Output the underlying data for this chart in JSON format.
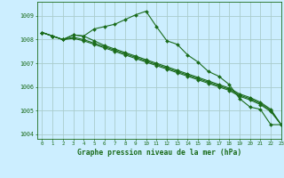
{
  "title": "Graphe pression niveau de la mer (hPa)",
  "background_color": "#cceeff",
  "grid_color": "#aacccc",
  "line_color": "#1a6b1a",
  "xlim": [
    -0.5,
    23
  ],
  "ylim": [
    1003.8,
    1009.6
  ],
  "yticks": [
    1004,
    1005,
    1006,
    1007,
    1008,
    1009
  ],
  "xticks": [
    0,
    1,
    2,
    3,
    4,
    5,
    6,
    7,
    8,
    9,
    10,
    11,
    12,
    13,
    14,
    15,
    16,
    17,
    18,
    19,
    20,
    21,
    22,
    23
  ],
  "series": [
    [
      1008.3,
      1008.15,
      1008.0,
      1008.2,
      1008.15,
      1008.45,
      1008.55,
      1008.65,
      1008.85,
      1009.05,
      1009.2,
      1008.55,
      1007.95,
      1007.8,
      1007.35,
      1007.05,
      1006.65,
      1006.45,
      1006.1,
      1005.5,
      1005.15,
      1005.05,
      1004.4,
      1004.4
    ],
    [
      1008.3,
      1008.15,
      1008.0,
      1008.2,
      1008.15,
      1007.95,
      1007.75,
      1007.6,
      1007.45,
      1007.3,
      1007.15,
      1007.0,
      1006.85,
      1006.7,
      1006.55,
      1006.4,
      1006.25,
      1006.1,
      1005.95,
      1005.7,
      1005.55,
      1005.35,
      1005.05,
      1004.4
    ],
    [
      1008.3,
      1008.15,
      1008.0,
      1008.1,
      1008.0,
      1007.85,
      1007.7,
      1007.55,
      1007.4,
      1007.25,
      1007.1,
      1006.95,
      1006.8,
      1006.65,
      1006.5,
      1006.35,
      1006.2,
      1006.05,
      1005.9,
      1005.65,
      1005.5,
      1005.3,
      1005.0,
      1004.4
    ],
    [
      1008.3,
      1008.15,
      1008.0,
      1008.05,
      1007.95,
      1007.8,
      1007.65,
      1007.5,
      1007.35,
      1007.2,
      1007.05,
      1006.9,
      1006.75,
      1006.6,
      1006.45,
      1006.3,
      1006.15,
      1006.0,
      1005.85,
      1005.6,
      1005.45,
      1005.25,
      1004.95,
      1004.4
    ]
  ]
}
